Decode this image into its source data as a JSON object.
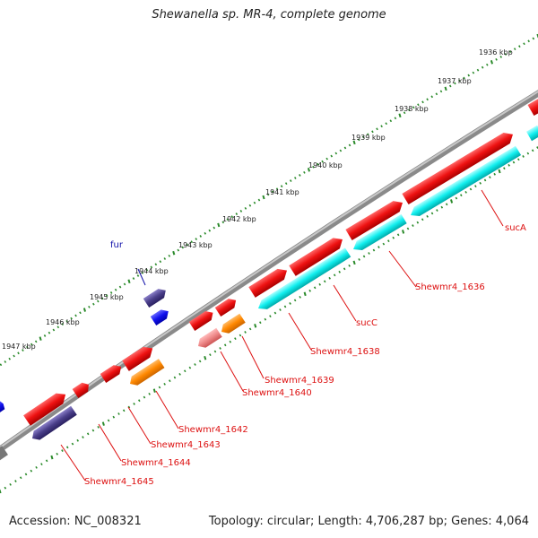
{
  "title": "Shewanella sp. MR-4, complete genome",
  "footer": {
    "accession": "Accession: NC_008321",
    "summary": "Topology: circular; Length: 4,706,287 bp; Genes: 4,064"
  },
  "colors": {
    "backbone": "#8a8a8a",
    "ruler_tick": "#2a8a2a",
    "gene_red": "#ee1111",
    "gene_cyan": "#11eeee",
    "gene_navy": "#4a3f8a",
    "gene_blue": "#1111ee",
    "gene_orange": "#ff8800",
    "gene_pink": "#ee8888",
    "label_red": "#dd1111",
    "label_blue": "#1111aa"
  },
  "ruler": {
    "unit": "kbp",
    "labels": [
      "1936 kbp",
      "1937 kbp",
      "1938 kbp",
      "1939 kbp",
      "1940 kbp",
      "1941 kbp",
      "1942 kbp",
      "1943 kbp",
      "1944 kbp",
      "1945 kbp",
      "1946 kbp",
      "1947 kbp"
    ]
  },
  "genes": [
    {
      "name": "sucA",
      "color": "red"
    },
    {
      "name": "Shewmr4_1636",
      "color": "red"
    },
    {
      "name": "sucC",
      "color": "red"
    },
    {
      "name": "Shewmr4_1638",
      "color": "red"
    },
    {
      "name": "Shewmr4_1639",
      "color": "red"
    },
    {
      "name": "Shewmr4_1640",
      "color": "red"
    },
    {
      "name": "Shewmr4_1642",
      "color": "red"
    },
    {
      "name": "Shewmr4_1643",
      "color": "red"
    },
    {
      "name": "Shewmr4_1644",
      "color": "red"
    },
    {
      "name": "Shewmr4_1645",
      "color": "red"
    },
    {
      "name": "fur",
      "color": "blue"
    }
  ]
}
